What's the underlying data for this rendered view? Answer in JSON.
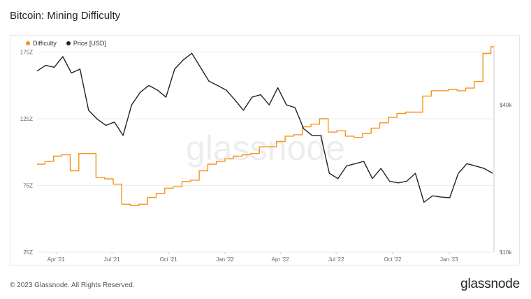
{
  "title": "Bitcoin: Mining Difficulty",
  "footer": {
    "copyright": "© 2023 Glassnode. All Rights Reserved.",
    "logo_text": "glassnode"
  },
  "watermark": "glassnode",
  "colors": {
    "difficulty": "#f7931a",
    "price": "#222222",
    "grid": "#eeeeee",
    "axis_text": "#666666"
  },
  "chart_data": {
    "type": "line",
    "title": "Bitcoin: Mining Difficulty",
    "legend": [
      {
        "name": "Difficulty",
        "color": "#f7931a"
      },
      {
        "name": "Price [USD]",
        "color": "#222222"
      }
    ],
    "legend_position": "top-left",
    "grid": "horizontal",
    "x_ticks": [
      "Apr '21",
      "Jul '21",
      "Oct '21",
      "Jan '22",
      "Apr '22",
      "Jul '22",
      "Oct '22",
      "Jan '23"
    ],
    "x_tick_dates": [
      "2021-04-01",
      "2021-07-01",
      "2021-10-01",
      "2022-01-01",
      "2022-04-01",
      "2022-07-01",
      "2022-10-01",
      "2023-01-01"
    ],
    "xlim": [
      "2021-03-01",
      "2023-03-15"
    ],
    "y_left": {
      "label": "Difficulty",
      "ticks": [
        25,
        75,
        125,
        175
      ],
      "tick_labels": [
        "25Z",
        "75Z",
        "125Z",
        "175Z"
      ],
      "ylim": [
        25,
        180
      ]
    },
    "y_right": {
      "label": "Price [USD]",
      "scale": "log",
      "ticks": [
        10000,
        40000
      ],
      "tick_labels": [
        "$10k",
        "$40k"
      ],
      "ylim": [
        10000,
        70000
      ]
    },
    "series": [
      {
        "name": "Difficulty",
        "axis": "left",
        "step": true,
        "x": [
          "2021-03-01",
          "2021-03-14",
          "2021-03-28",
          "2021-04-10",
          "2021-04-24",
          "2021-05-08",
          "2021-05-22",
          "2021-06-05",
          "2021-06-19",
          "2021-07-03",
          "2021-07-17",
          "2021-07-31",
          "2021-08-14",
          "2021-08-28",
          "2021-09-11",
          "2021-09-25",
          "2021-10-09",
          "2021-10-23",
          "2021-11-06",
          "2021-11-20",
          "2021-12-04",
          "2021-12-18",
          "2022-01-01",
          "2022-01-15",
          "2022-01-29",
          "2022-02-12",
          "2022-02-26",
          "2022-03-12",
          "2022-03-26",
          "2022-04-09",
          "2022-04-23",
          "2022-05-07",
          "2022-05-21",
          "2022-06-04",
          "2022-06-18",
          "2022-07-02",
          "2022-07-16",
          "2022-07-30",
          "2022-08-13",
          "2022-08-27",
          "2022-09-10",
          "2022-09-24",
          "2022-10-08",
          "2022-10-22",
          "2022-11-05",
          "2022-11-19",
          "2022-12-03",
          "2022-12-17",
          "2022-12-31",
          "2023-01-14",
          "2023-01-28",
          "2023-02-11",
          "2023-02-25",
          "2023-03-10"
        ],
        "values": [
          91,
          93,
          97,
          98,
          86,
          99,
          99,
          81,
          80,
          76,
          61,
          60,
          61,
          66,
          69,
          73,
          74,
          78,
          79,
          86,
          91,
          93,
          95,
          97,
          98,
          99,
          104,
          104,
          108,
          112,
          113,
          119,
          121,
          125,
          115,
          116,
          112,
          111,
          114,
          118,
          122,
          126,
          129,
          130,
          130,
          142,
          146,
          146,
          147,
          146,
          148,
          153,
          174,
          179
        ]
      },
      {
        "name": "Price [USD]",
        "axis": "right",
        "step": false,
        "x": [
          "2021-03-01",
          "2021-03-15",
          "2021-03-29",
          "2021-04-12",
          "2021-04-26",
          "2021-05-10",
          "2021-05-24",
          "2021-06-07",
          "2021-06-21",
          "2021-07-05",
          "2021-07-19",
          "2021-08-02",
          "2021-08-16",
          "2021-08-30",
          "2021-09-13",
          "2021-09-27",
          "2021-10-11",
          "2021-10-25",
          "2021-11-08",
          "2021-11-22",
          "2021-12-06",
          "2021-12-20",
          "2022-01-03",
          "2022-01-17",
          "2022-01-31",
          "2022-02-14",
          "2022-02-28",
          "2022-03-14",
          "2022-03-28",
          "2022-04-11",
          "2022-04-25",
          "2022-05-09",
          "2022-05-23",
          "2022-06-06",
          "2022-06-20",
          "2022-07-04",
          "2022-07-18",
          "2022-08-01",
          "2022-08-15",
          "2022-08-29",
          "2022-09-12",
          "2022-09-26",
          "2022-10-10",
          "2022-10-24",
          "2022-11-07",
          "2022-11-21",
          "2022-12-05",
          "2022-12-19",
          "2023-01-02",
          "2023-01-16",
          "2023-01-30",
          "2023-02-13",
          "2023-02-27",
          "2023-03-13"
        ],
        "values": [
          55000,
          58000,
          57000,
          63000,
          54000,
          56000,
          38000,
          35000,
          33000,
          34000,
          30000,
          40000,
          45000,
          48000,
          46000,
          43000,
          56000,
          61000,
          65000,
          57000,
          50000,
          48000,
          46000,
          42000,
          38000,
          43000,
          44000,
          40000,
          47000,
          40000,
          39000,
          32000,
          30000,
          30000,
          21000,
          20000,
          22500,
          23000,
          23500,
          20000,
          22000,
          19500,
          19200,
          19500,
          21000,
          16000,
          17000,
          16800,
          16700,
          21000,
          23000,
          22500,
          22000,
          21000
        ]
      }
    ]
  }
}
